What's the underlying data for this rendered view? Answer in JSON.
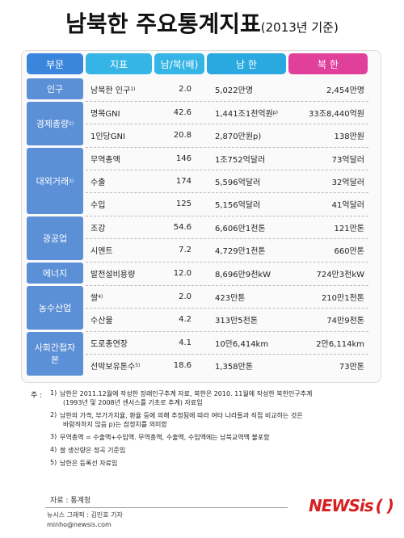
{
  "header": {
    "title": "남북한 주요통계지표",
    "subtitle": "(2013년 기준)"
  },
  "table": {
    "headers": [
      "부문",
      "지표",
      "남/북(배)",
      "남 한",
      "북 한"
    ],
    "groups": [
      {
        "name": "인구",
        "rows": [
          {
            "indicator": "남북한 인구",
            "note": "1)",
            "ratio": "2.0",
            "south": "5,022만명",
            "north": "2,454만명"
          }
        ]
      },
      {
        "name": "경제총량",
        "note": "2)",
        "rows": [
          {
            "indicator": "명목GNI",
            "ratio": "42.6",
            "south": "1,441조1천억원",
            "south_note": "p)",
            "north": "33조8,440억원"
          },
          {
            "indicator": "1인당GNI",
            "ratio": "20.8",
            "south": "2,870만원p)",
            "north": "138만원"
          }
        ]
      },
      {
        "name": "대외거래",
        "note": "3)",
        "rows": [
          {
            "indicator": "무역총액",
            "ratio": "146",
            "south": "1조752억달러",
            "north": "73억달러"
          },
          {
            "indicator": "수출",
            "ratio": "174",
            "south": "5,596억달러",
            "north": "32억달러"
          },
          {
            "indicator": "수입",
            "ratio": "125",
            "south": "5,156억달러",
            "north": "41억달러"
          }
        ]
      },
      {
        "name": "광공업",
        "rows": [
          {
            "indicator": "조강",
            "ratio": "54.6",
            "south": "6,606만1천톤",
            "north": "121만톤"
          },
          {
            "indicator": "시멘트",
            "ratio": "7.2",
            "south": "4,729만1천톤",
            "north": "660만톤"
          }
        ]
      },
      {
        "name": "에너지",
        "rows": [
          {
            "indicator": "발전설비용량",
            "ratio": "12.0",
            "south": "8,696만9천kW",
            "north": "724만3천kW"
          }
        ]
      },
      {
        "name": "농수산업",
        "rows": [
          {
            "indicator": "쌀",
            "note": "4)",
            "ratio": "2.0",
            "south": "423만톤",
            "north": "210만1천톤"
          },
          {
            "indicator": "수산물",
            "ratio": "4.2",
            "south": "313만5천톤",
            "north": "74만9천톤"
          }
        ]
      },
      {
        "name": "사회간접자본",
        "rows": [
          {
            "indicator": "도로총연장",
            "ratio": "4.1",
            "south": "10만6,414km",
            "north": "2만6,114km"
          },
          {
            "indicator": "선박보유톤수",
            "note": "5)",
            "ratio": "18.6",
            "south": "1,358만톤",
            "north": "73만톤"
          }
        ]
      }
    ]
  },
  "notes": {
    "label": "주 :",
    "items": [
      {
        "marker": "1)",
        "lines": [
          "남한은 2011.12월에 작성한 장래인구추계 자료, 북한은 2010. 11월에 작성한 북한인구추계",
          "(1993년 및 2008년 센서스를 기초로 추계) 자료임"
        ]
      },
      {
        "marker": "2)",
        "lines": [
          "남한의 가격, 부가가치율, 환율 등에 의해 추정됨에 따라 여타 나라들과 직접 비교하는 것은",
          "바람직하지 않음 p)는 잠정치를 의미함"
        ]
      },
      {
        "marker": "3)",
        "lines": [
          "무역총액 = 수출액+수입액. 무역총액, 수출액, 수입액에는 남북교역액 불포함"
        ]
      },
      {
        "marker": "4)",
        "lines": [
          "쌀 생산량은 정곡 기준임"
        ]
      },
      {
        "marker": "5)",
        "lines": [
          "남한은 등록선 자료임"
        ]
      }
    ]
  },
  "footer": {
    "source": "자료 : 통계청",
    "graphic": "뉴시스 그래픽 : 김민호 기자",
    "email": "minho@newsis.com",
    "logo": "NEWSis",
    "logo_paren": "( )"
  }
}
